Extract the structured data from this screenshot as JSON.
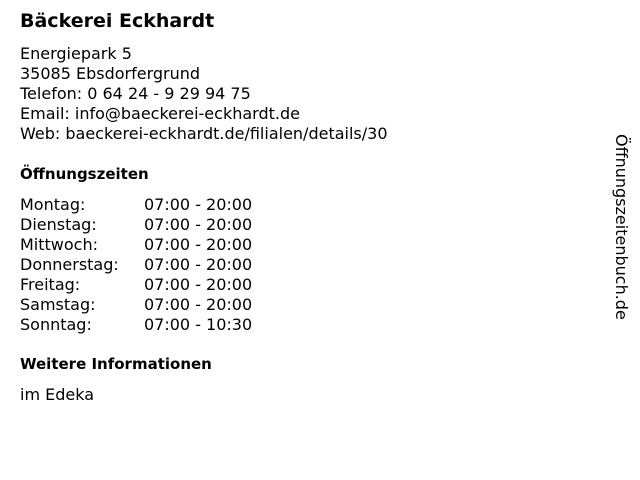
{
  "title": "Bäckerei Eckhardt",
  "address": [
    "Energiepark 5",
    "35085 Ebsdorfergrund",
    "Telefon: 0 64 24 - 9 29 94 75",
    "Email: info@baeckerei-eckhardt.de",
    "Web: baeckerei-eckhardt.de/filialen/details/30"
  ],
  "hours_title": "Öffnungszeiten",
  "hours": [
    {
      "day": "Montag:",
      "time": "07:00 - 20:00"
    },
    {
      "day": "Dienstag:",
      "time": "07:00 - 20:00"
    },
    {
      "day": "Mittwoch:",
      "time": "07:00 - 20:00"
    },
    {
      "day": "Donnerstag:",
      "time": "07:00 - 20:00"
    },
    {
      "day": "Freitag:",
      "time": "07:00 - 20:00"
    },
    {
      "day": "Samstag:",
      "time": "07:00 - 20:00"
    },
    {
      "day": "Sonntag:",
      "time": "07:00 - 10:30"
    }
  ],
  "info_title": "Weitere Informationen",
  "info": "im Edeka",
  "side_brand": "Öffnungszeitenbuch.de"
}
